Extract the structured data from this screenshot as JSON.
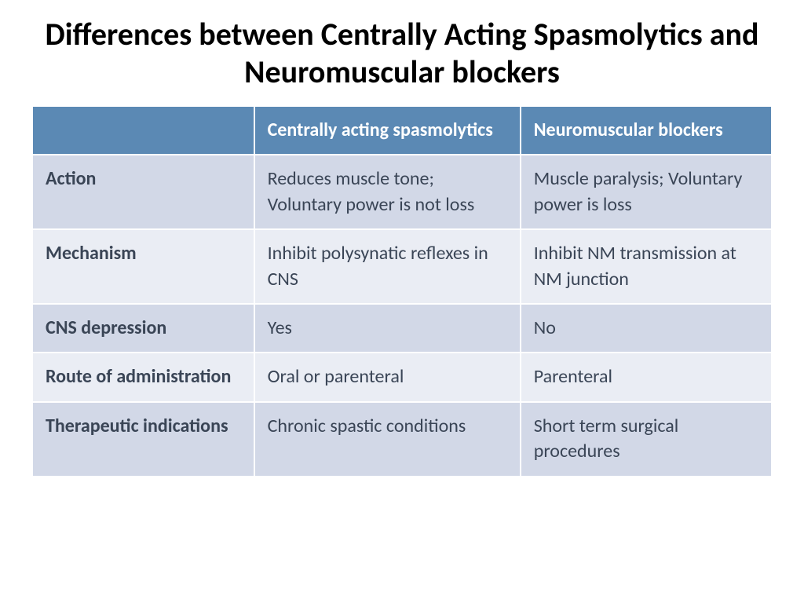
{
  "title": "Differences between Centrally Acting Spasmolytics and Neuromuscular blockers",
  "table": {
    "type": "table",
    "header_bg": "#5b89b4",
    "header_fg": "#ffffff",
    "row_dark_bg": "#d2d8e7",
    "row_light_bg": "#eaedf4",
    "text_color": "#3a4556",
    "border_color": "#ffffff",
    "title_fontsize": 40,
    "cell_fontsize": 24,
    "columns": [
      {
        "key": "label",
        "header": ""
      },
      {
        "key": "centrally",
        "header": "Centrally acting spasmolytics"
      },
      {
        "key": "neuromuscular",
        "header": "Neuromuscular blockers"
      }
    ],
    "rows": [
      {
        "label": "Action",
        "centrally": "Reduces muscle tone; Voluntary power is not loss",
        "neuromuscular": "Muscle paralysis; Voluntary power is loss"
      },
      {
        "label": "Mechanism",
        "centrally": "Inhibit polysynatic reflexes in CNS",
        "neuromuscular": "Inhibit NM transmission at NM junction"
      },
      {
        "label": "CNS depression",
        "centrally": "Yes",
        "neuromuscular": "No"
      },
      {
        "label": "Route of administration",
        "centrally": "Oral or parenteral",
        "neuromuscular": "Parenteral"
      },
      {
        "label": "Therapeutic indications",
        "centrally": "Chronic spastic conditions",
        "neuromuscular": "Short term surgical procedures"
      }
    ]
  }
}
